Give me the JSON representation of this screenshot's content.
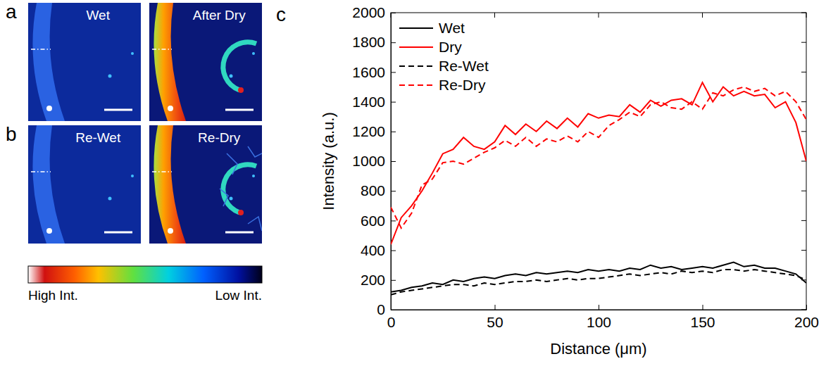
{
  "panels": [
    {
      "letter": "a",
      "images": [
        {
          "label": "Wet"
        },
        {
          "label": "After Dry"
        }
      ]
    },
    {
      "letter": "b",
      "images": [
        {
          "label": "Re-Wet"
        },
        {
          "label": "Re-Dry"
        }
      ]
    }
  ],
  "colorbar": {
    "high_label": "High Int.",
    "low_label": "Low Int."
  },
  "chart_data": {
    "type": "line",
    "panel": "c",
    "x_label": "Distance (μm)",
    "y_label": "Intensity (a.u.)",
    "x": [
      0,
      5,
      10,
      15,
      20,
      25,
      30,
      35,
      40,
      45,
      50,
      55,
      60,
      65,
      70,
      75,
      80,
      85,
      90,
      95,
      100,
      105,
      110,
      115,
      120,
      125,
      130,
      135,
      140,
      145,
      150,
      155,
      160,
      165,
      170,
      175,
      180,
      185,
      190,
      195,
      200
    ],
    "xlim": [
      0,
      200
    ],
    "xticks": [
      0,
      50,
      100,
      150,
      200
    ],
    "ylim": [
      0,
      2000
    ],
    "yticks": [
      0,
      200,
      400,
      600,
      800,
      1000,
      1200,
      1400,
      1600,
      1800,
      2000
    ],
    "legend": "top-left",
    "grid": false,
    "series": [
      {
        "name": "Wet",
        "color": "#000000",
        "line_style": "solid",
        "values": [
          120,
          130,
          150,
          160,
          180,
          170,
          200,
          190,
          210,
          220,
          210,
          230,
          240,
          230,
          250,
          240,
          250,
          260,
          250,
          270,
          260,
          270,
          260,
          280,
          270,
          300,
          280,
          290,
          270,
          280,
          290,
          280,
          300,
          320,
          290,
          300,
          280,
          280,
          260,
          240,
          180
        ]
      },
      {
        "name": "Dry",
        "color": "#ff0000",
        "line_style": "solid",
        "values": [
          440,
          620,
          700,
          800,
          920,
          1050,
          1080,
          1160,
          1100,
          1080,
          1130,
          1240,
          1180,
          1250,
          1200,
          1270,
          1220,
          1290,
          1230,
          1320,
          1290,
          1310,
          1300,
          1380,
          1330,
          1410,
          1370,
          1410,
          1420,
          1380,
          1530,
          1400,
          1500,
          1440,
          1470,
          1440,
          1450,
          1360,
          1400,
          1260,
          1000
        ]
      },
      {
        "name": "Re-Wet",
        "color": "#000000",
        "line_style": "dashed",
        "values": [
          100,
          120,
          130,
          140,
          150,
          160,
          170,
          170,
          160,
          180,
          170,
          180,
          190,
          190,
          200,
          190,
          200,
          210,
          200,
          210,
          210,
          220,
          230,
          240,
          230,
          240,
          250,
          240,
          260,
          250,
          260,
          250,
          270,
          270,
          260,
          270,
          260,
          250,
          240,
          230,
          200
        ]
      },
      {
        "name": "Re-Dry",
        "color": "#ff0000",
        "line_style": "dashed",
        "values": [
          690,
          550,
          650,
          840,
          880,
          990,
          1000,
          980,
          1020,
          1060,
          1090,
          1140,
          1100,
          1160,
          1100,
          1150,
          1130,
          1170,
          1130,
          1200,
          1160,
          1240,
          1280,
          1330,
          1300,
          1380,
          1400,
          1360,
          1350,
          1400,
          1350,
          1460,
          1440,
          1480,
          1500,
          1470,
          1490,
          1440,
          1470,
          1400,
          1280
        ]
      }
    ]
  }
}
